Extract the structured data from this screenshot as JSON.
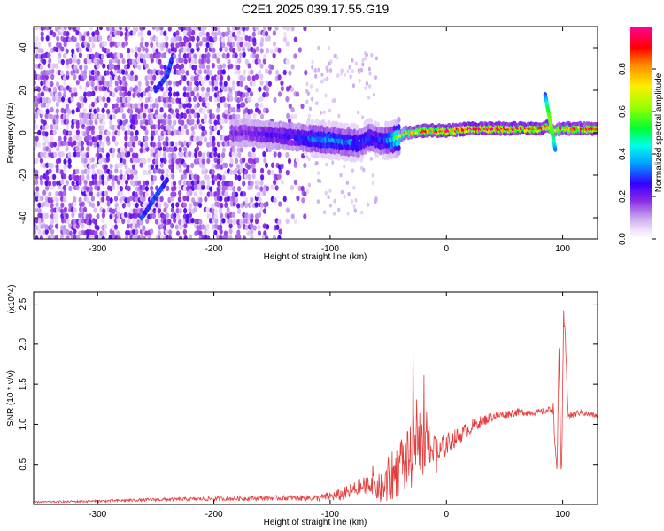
{
  "title": "C2E1.2025.039.17.55.G19",
  "chart_data": [
    {
      "type": "heatmap",
      "xlabel": "Height of straight line (km)",
      "ylabel": "Frequency (Hz)",
      "xlim": [
        -355,
        130
      ],
      "ylim": [
        -50,
        50
      ],
      "xticks": [
        -300,
        -200,
        -100,
        0,
        100
      ],
      "yticks": [
        -40,
        -20,
        0,
        20,
        40
      ],
      "colorbar": {
        "label": "Normalized spectral amplitude",
        "range": [
          0,
          1
        ],
        "ticks": [
          "0.0",
          "0.2",
          "0.4",
          "0.6",
          "0.8"
        ],
        "tick_values": [
          0.0,
          0.2,
          0.4,
          0.6,
          0.8
        ],
        "colormap": "rainbow (white-violet-blue-cyan-green-yellow-red-magenta)"
      },
      "ridge": {
        "x": [
          -185,
          -170,
          -150,
          -130,
          -110,
          -90,
          -75,
          -65,
          -55,
          -45,
          -35,
          -20,
          0,
          20,
          50,
          80,
          88,
          92,
          100,
          130
        ],
        "freq": [
          0,
          0,
          -1,
          -2,
          -3,
          -4,
          -5,
          -2,
          -4,
          -3,
          0,
          1,
          1,
          2,
          2,
          2,
          3,
          1,
          2,
          2
        ],
        "amplitude": [
          0.2,
          0.2,
          0.25,
          0.25,
          0.35,
          0.35,
          0.3,
          0.3,
          0.3,
          0.45,
          0.8,
          0.85,
          0.95,
          0.95,
          0.95,
          0.95,
          0.9,
          0.7,
          0.9,
          0.9
        ]
      },
      "streak": {
        "x0": 85,
        "f0": 18,
        "x1": 94,
        "f1": -9
      },
      "noise_x_range": [
        -355,
        -120
      ],
      "arcs": [
        {
          "x": [
            -250,
            -240,
            -236
          ],
          "freq": [
            20,
            27,
            35
          ]
        },
        {
          "x": [
            -262,
            -250,
            -240
          ],
          "freq": [
            -40,
            -30,
            -22
          ]
        }
      ]
    },
    {
      "type": "line",
      "xlabel": "Height of straight line (km)",
      "ylabel": "SNR (10 * v/v)",
      "yscale_label": "(x10^4)",
      "xlim": [
        -355,
        130
      ],
      "ylim": [
        0,
        26500
      ],
      "xticks": [
        -300,
        -200,
        -100,
        0,
        100
      ],
      "yticks": [
        0.5,
        1.0,
        1.5,
        2.0,
        2.5
      ],
      "series": [
        {
          "color": "#e63b3b",
          "x": [
            -355,
            -300,
            -250,
            -200,
            -150,
            -110,
            -90,
            -75,
            -65,
            -55,
            -50,
            -40,
            -30,
            -25,
            -20,
            -15,
            -10,
            -5,
            0,
            5,
            15,
            25,
            40,
            60,
            80,
            88,
            92,
            95,
            97,
            99,
            101,
            105,
            115,
            130
          ],
          "y": [
            300,
            400,
            600,
            700,
            800,
            800,
            1200,
            2000,
            2500,
            1800,
            3000,
            4500,
            6000,
            10000,
            6000,
            8000,
            6000,
            6500,
            7500,
            8000,
            9000,
            10000,
            11000,
            11500,
            11500,
            11800,
            12000,
            3000,
            20000,
            1500,
            24000,
            11000,
            11500,
            11000
          ],
          "noise": [
            100,
            150,
            200,
            250,
            300,
            400,
            800,
            1200,
            1500,
            2000,
            3000,
            3500,
            4000,
            4000,
            3500,
            3000,
            2500,
            2000,
            1500,
            1200,
            1000,
            800,
            600,
            500,
            400,
            400,
            800,
            1500,
            3000,
            3000,
            2000,
            500,
            400,
            300
          ]
        }
      ]
    }
  ]
}
